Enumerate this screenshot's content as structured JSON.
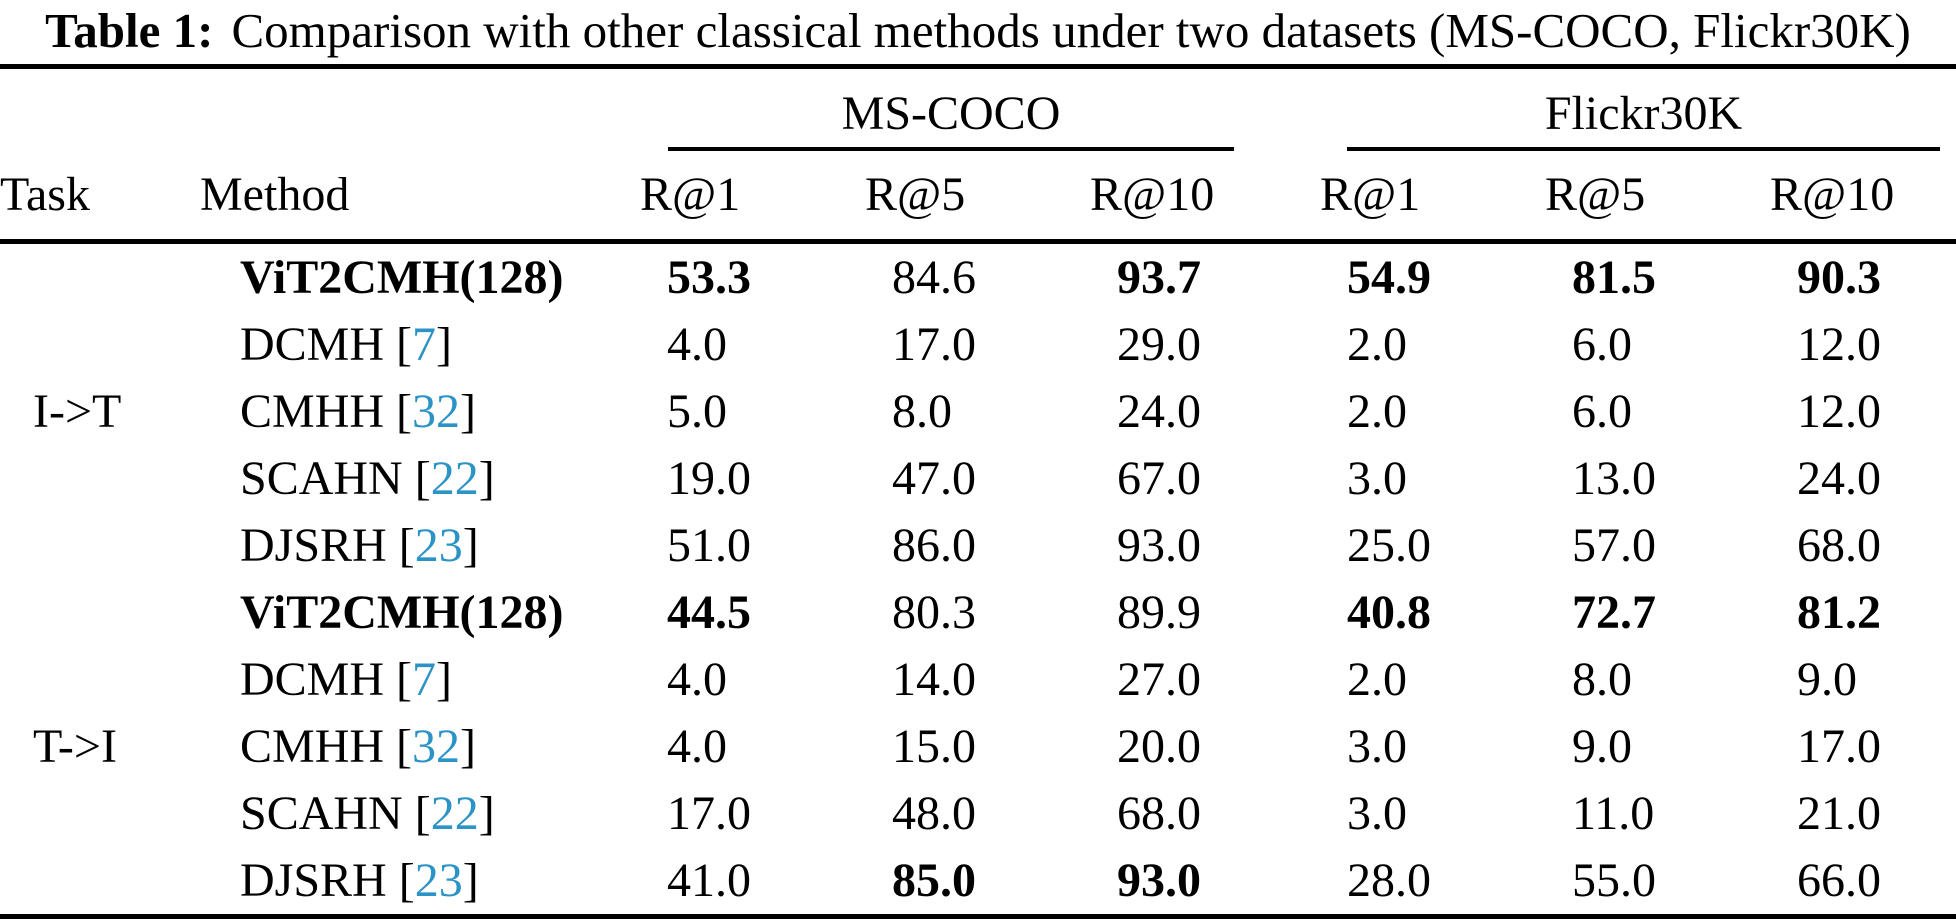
{
  "caption": {
    "label": "Table 1:",
    "text": "Comparison with other classical methods under two datasets (MS-COCO, Flickr30K)"
  },
  "colors": {
    "background": "#ffffff",
    "text": "#000000",
    "citation": "#2b93c5",
    "rule": "#000000"
  },
  "table": {
    "headers": {
      "task": "Task",
      "method": "Method"
    },
    "groups": [
      {
        "name": "MS-COCO",
        "metrics": [
          "R@1",
          "R@5",
          "R@10"
        ]
      },
      {
        "name": "Flickr30K",
        "metrics": [
          "R@1",
          "R@5",
          "R@10"
        ]
      }
    ],
    "task_groups": [
      {
        "task": "I->T",
        "rows": [
          {
            "method": "ViT2CMH(128)",
            "method_bold": true,
            "citation": "",
            "values": [
              "53.3",
              "84.6",
              "93.7",
              "54.9",
              "81.5",
              "90.3"
            ],
            "bold": [
              true,
              false,
              true,
              true,
              true,
              true
            ]
          },
          {
            "method": "DCMH",
            "method_bold": false,
            "citation": "7",
            "values": [
              "4.0",
              "17.0",
              "29.0",
              "2.0",
              "6.0",
              "12.0"
            ],
            "bold": [
              false,
              false,
              false,
              false,
              false,
              false
            ]
          },
          {
            "method": "CMHH",
            "method_bold": false,
            "citation": "32",
            "values": [
              "5.0",
              "8.0",
              "24.0",
              "2.0",
              "6.0",
              "12.0"
            ],
            "bold": [
              false,
              false,
              false,
              false,
              false,
              false
            ]
          },
          {
            "method": "SCAHN",
            "method_bold": false,
            "citation": "22",
            "values": [
              "19.0",
              "47.0",
              "67.0",
              "3.0",
              "13.0",
              "24.0"
            ],
            "bold": [
              false,
              false,
              false,
              false,
              false,
              false
            ]
          },
          {
            "method": "DJSRH",
            "method_bold": false,
            "citation": "23",
            "values": [
              "51.0",
              "86.0",
              "93.0",
              "25.0",
              "57.0",
              "68.0"
            ],
            "bold": [
              false,
              false,
              false,
              false,
              false,
              false
            ]
          }
        ]
      },
      {
        "task": "T->I",
        "rows": [
          {
            "method": "ViT2CMH(128)",
            "method_bold": true,
            "citation": "",
            "values": [
              "44.5",
              "80.3",
              "89.9",
              "40.8",
              "72.7",
              "81.2"
            ],
            "bold": [
              true,
              false,
              false,
              true,
              true,
              true
            ]
          },
          {
            "method": "DCMH",
            "method_bold": false,
            "citation": "7",
            "values": [
              "4.0",
              "14.0",
              "27.0",
              "2.0",
              "8.0",
              "9.0"
            ],
            "bold": [
              false,
              false,
              false,
              false,
              false,
              false
            ]
          },
          {
            "method": "CMHH",
            "method_bold": false,
            "citation": "32",
            "values": [
              "4.0",
              "15.0",
              "20.0",
              "3.0",
              "9.0",
              "17.0"
            ],
            "bold": [
              false,
              false,
              false,
              false,
              false,
              false
            ]
          },
          {
            "method": "SCAHN",
            "method_bold": false,
            "citation": "22",
            "values": [
              "17.0",
              "48.0",
              "68.0",
              "3.0",
              "11.0",
              "21.0"
            ],
            "bold": [
              false,
              false,
              false,
              false,
              false,
              false
            ]
          },
          {
            "method": "DJSRH",
            "method_bold": false,
            "citation": "23",
            "values": [
              "41.0",
              "85.0",
              "93.0",
              "28.0",
              "55.0",
              "66.0"
            ],
            "bold": [
              false,
              true,
              true,
              false,
              false,
              false
            ]
          }
        ]
      }
    ]
  }
}
